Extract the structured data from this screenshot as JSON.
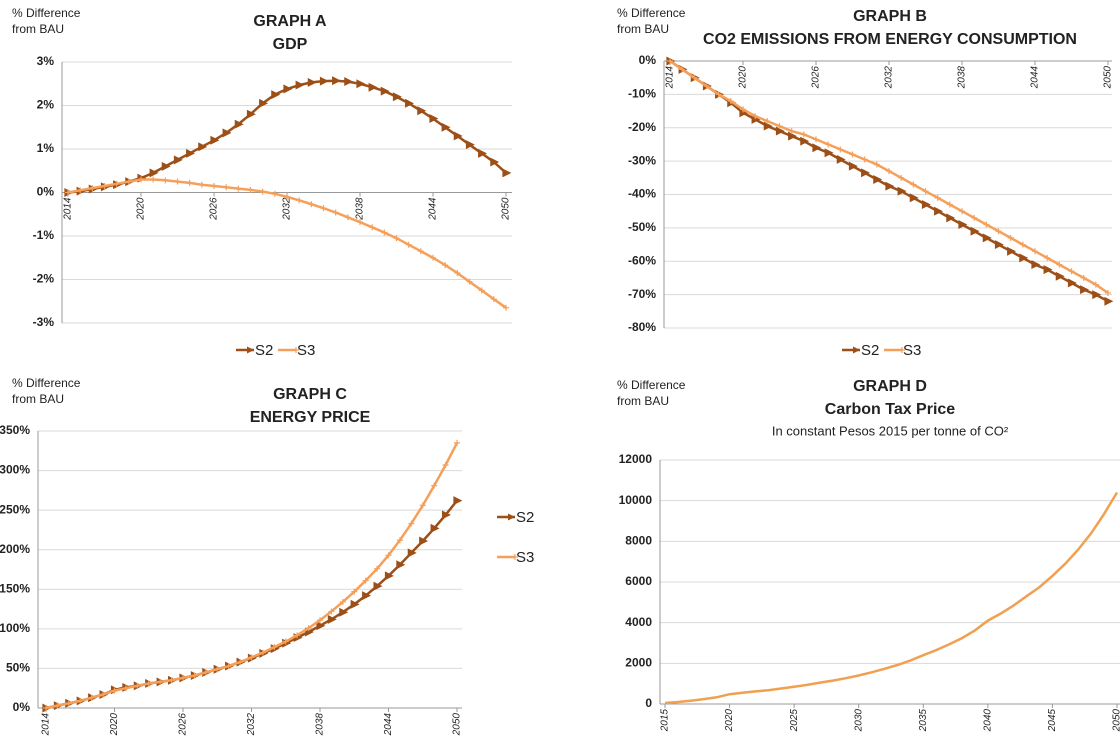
{
  "chart_data": [
    {
      "type": "line",
      "title": "GRAPH A",
      "subtitle": "GDP",
      "ylabel": [
        "% Difference",
        "from BAU"
      ],
      "x": [
        2014,
        2015,
        2016,
        2017,
        2018,
        2019,
        2020,
        2021,
        2022,
        2023,
        2024,
        2025,
        2026,
        2027,
        2028,
        2029,
        2030,
        2031,
        2032,
        2033,
        2034,
        2035,
        2036,
        2037,
        2038,
        2039,
        2040,
        2041,
        2042,
        2043,
        2044,
        2045,
        2046,
        2047,
        2048,
        2049,
        2050
      ],
      "series": [
        {
          "name": "S2",
          "color": "#9c4f16",
          "marker": "triangle",
          "values": [
            0,
            0.03,
            0.08,
            0.13,
            0.18,
            0.25,
            0.33,
            0.45,
            0.6,
            0.75,
            0.9,
            1.05,
            1.2,
            1.37,
            1.57,
            1.8,
            2.05,
            2.25,
            2.38,
            2.47,
            2.53,
            2.56,
            2.57,
            2.55,
            2.5,
            2.42,
            2.33,
            2.2,
            2.05,
            1.88,
            1.7,
            1.5,
            1.3,
            1.1,
            0.9,
            0.7,
            0.45
          ]
        },
        {
          "name": "S3",
          "color": "#f5a05a",
          "marker": "cross",
          "values": [
            0,
            0.05,
            0.1,
            0.15,
            0.2,
            0.25,
            0.3,
            0.3,
            0.28,
            0.25,
            0.22,
            0.18,
            0.15,
            0.12,
            0.09,
            0.06,
            0.02,
            -0.03,
            -0.1,
            -0.18,
            -0.27,
            -0.36,
            -0.46,
            -0.57,
            -0.68,
            -0.8,
            -0.92,
            -1.05,
            -1.2,
            -1.35,
            -1.5,
            -1.67,
            -1.85,
            -2.05,
            -2.25,
            -2.45,
            -2.65
          ]
        }
      ],
      "xlim": [
        2014,
        2050
      ],
      "xticks": [
        2014,
        2020,
        2026,
        2032,
        2038,
        2044,
        2050
      ],
      "ylim": [
        -3,
        3
      ],
      "yticks": [
        {
          "value": 3,
          "label": "3%"
        },
        {
          "value": 2,
          "label": "2%"
        },
        {
          "value": 1,
          "label": "1%"
        },
        {
          "value": 0,
          "label": "0%"
        },
        {
          "value": -1,
          "label": "-1%"
        },
        {
          "value": -2,
          "label": "-2%"
        },
        {
          "value": -3,
          "label": "-3%"
        }
      ],
      "grid": true,
      "legend": "bottom"
    },
    {
      "type": "line",
      "title": "GRAPH B",
      "subtitle": "CO2 EMISSIONS FROM ENERGY CONSUMPTION",
      "ylabel": [
        "% Difference",
        "from BAU"
      ],
      "x": [
        2014,
        2015,
        2016,
        2017,
        2018,
        2019,
        2020,
        2021,
        2022,
        2023,
        2024,
        2025,
        2026,
        2027,
        2028,
        2029,
        2030,
        2031,
        2032,
        2033,
        2034,
        2035,
        2036,
        2037,
        2038,
        2039,
        2040,
        2041,
        2042,
        2043,
        2044,
        2045,
        2046,
        2047,
        2048,
        2049,
        2050
      ],
      "series": [
        {
          "name": "S2",
          "color": "#9c4f16",
          "marker": "triangle",
          "values": [
            0,
            -2.5,
            -5,
            -7.5,
            -10,
            -12.5,
            -15.5,
            -17.5,
            -19.5,
            -21,
            -22.5,
            -24,
            -26,
            -27.5,
            -29.5,
            -31.5,
            -33.5,
            -35.5,
            -37.5,
            -39,
            -41,
            -43,
            -45,
            -47,
            -49,
            -51,
            -53,
            -55,
            -57,
            -59,
            -61,
            -62.5,
            -64.5,
            -66.5,
            -68.5,
            -70,
            -72
          ]
        },
        {
          "name": "S3",
          "color": "#f5a05a",
          "marker": "cross",
          "values": [
            0,
            -2.5,
            -5,
            -7.5,
            -10,
            -12,
            -14.5,
            -16.5,
            -18,
            -19.5,
            -21,
            -22,
            -23.5,
            -25,
            -26.5,
            -28,
            -29.5,
            -31,
            -33,
            -35,
            -37,
            -39,
            -41,
            -43,
            -45,
            -47,
            -49,
            -51,
            -53,
            -55,
            -57,
            -59,
            -61,
            -63,
            -65,
            -67,
            -69.5
          ]
        }
      ],
      "xlim": [
        2014,
        2050
      ],
      "xticks": [
        2014,
        2020,
        2026,
        2032,
        2038,
        2044,
        2050
      ],
      "ylim": [
        -80,
        0
      ],
      "yticks": [
        {
          "value": 0,
          "label": "0%"
        },
        {
          "value": -10,
          "label": "-10%"
        },
        {
          "value": -20,
          "label": "-20%"
        },
        {
          "value": -30,
          "label": "-30%"
        },
        {
          "value": -40,
          "label": "-40%"
        },
        {
          "value": -50,
          "label": "-50%"
        },
        {
          "value": -60,
          "label": "-60%"
        },
        {
          "value": -70,
          "label": "-70%"
        },
        {
          "value": -80,
          "label": "-80%"
        }
      ],
      "grid": true,
      "legend": "bottom"
    },
    {
      "type": "line",
      "title": "GRAPH C",
      "subtitle": "ENERGY PRICE",
      "ylabel": [
        "% Difference",
        "from BAU"
      ],
      "x": [
        2014,
        2015,
        2016,
        2017,
        2018,
        2019,
        2020,
        2021,
        2022,
        2023,
        2024,
        2025,
        2026,
        2027,
        2028,
        2029,
        2030,
        2031,
        2032,
        2033,
        2034,
        2035,
        2036,
        2037,
        2038,
        2039,
        2040,
        2041,
        2042,
        2043,
        2044,
        2045,
        2046,
        2047,
        2048,
        2049,
        2050
      ],
      "series": [
        {
          "name": "S2",
          "color": "#9c4f16",
          "marker": "triangle",
          "values": [
            0,
            3,
            6,
            9,
            13,
            17,
            23,
            26,
            28,
            31,
            33,
            35,
            38,
            41,
            45,
            49,
            53,
            58,
            63,
            69,
            75,
            82,
            89,
            96,
            104,
            112,
            121,
            131,
            142,
            154,
            167,
            181,
            196,
            211,
            227,
            244,
            262
          ]
        },
        {
          "name": "S3",
          "color": "#f5a05a",
          "marker": "cross",
          "values": [
            0,
            3,
            6,
            9,
            13,
            17,
            22,
            25,
            28,
            31,
            33,
            35,
            38,
            41,
            45,
            49,
            53,
            58,
            64,
            70,
            77,
            84,
            92,
            101,
            111,
            122,
            134,
            147,
            161,
            176,
            193,
            212,
            233,
            256,
            281,
            307,
            335
          ]
        }
      ],
      "xlim": [
        2014,
        2050
      ],
      "xticks": [
        2014,
        2020,
        2026,
        2032,
        2038,
        2044,
        2050
      ],
      "ylim": [
        0,
        350
      ],
      "yticks": [
        {
          "value": 350,
          "label": "350%"
        },
        {
          "value": 300,
          "label": "300%"
        },
        {
          "value": 250,
          "label": "250%"
        },
        {
          "value": 200,
          "label": "200%"
        },
        {
          "value": 150,
          "label": "150%"
        },
        {
          "value": 100,
          "label": "100%"
        },
        {
          "value": 50,
          "label": "50%"
        },
        {
          "value": 0,
          "label": "0%"
        }
      ],
      "grid": true,
      "legend": "right"
    },
    {
      "type": "line",
      "title": "GRAPH D",
      "subtitle": "Carbon Tax Price",
      "caption": "In constant Pesos 2015 per tonne of CO²",
      "ylabel": [
        "% Difference",
        "from BAU"
      ],
      "x": [
        2015,
        2016,
        2017,
        2018,
        2019,
        2020,
        2021,
        2022,
        2023,
        2024,
        2025,
        2026,
        2027,
        2028,
        2029,
        2030,
        2031,
        2032,
        2033,
        2034,
        2035,
        2036,
        2037,
        2038,
        2039,
        2040,
        2041,
        2042,
        2043,
        2044,
        2045,
        2046,
        2047,
        2048,
        2049,
        2050
      ],
      "series": [
        {
          "color": "#f0a050",
          "values": [
            50,
            100,
            160,
            240,
            330,
            480,
            550,
            620,
            680,
            760,
            850,
            940,
            1050,
            1150,
            1270,
            1400,
            1560,
            1730,
            1920,
            2140,
            2400,
            2650,
            2930,
            3240,
            3620,
            4100,
            4450,
            4850,
            5300,
            5750,
            6300,
            6900,
            7600,
            8400,
            9350,
            10400
          ]
        }
      ],
      "xlim": [
        2015,
        2050
      ],
      "xticks": [
        2015,
        2020,
        2025,
        2030,
        2035,
        2040,
        2045,
        2050
      ],
      "ylim": [
        0,
        12000
      ],
      "yticks": [
        0,
        2000,
        4000,
        6000,
        8000,
        10000,
        12000
      ],
      "grid": true
    }
  ]
}
